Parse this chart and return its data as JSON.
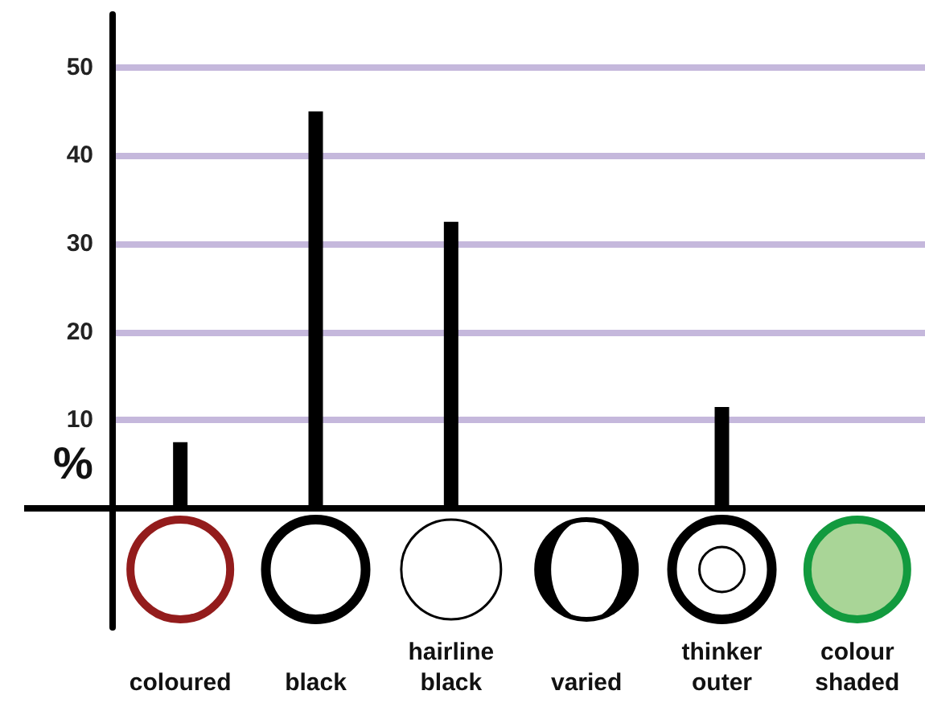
{
  "chart_data": {
    "type": "bar",
    "ylabel": "%",
    "categories": [
      "coloured",
      "black",
      "hairline black",
      "varied",
      "thinker outer",
      "colour shaded"
    ],
    "values": [
      7.5,
      45,
      32.5,
      0,
      11.5,
      0
    ],
    "color": "#000000",
    "ylim": [
      -13.5,
      56
    ],
    "yticks": [
      10,
      20,
      30,
      40,
      50
    ],
    "grid": "y"
  }
}
